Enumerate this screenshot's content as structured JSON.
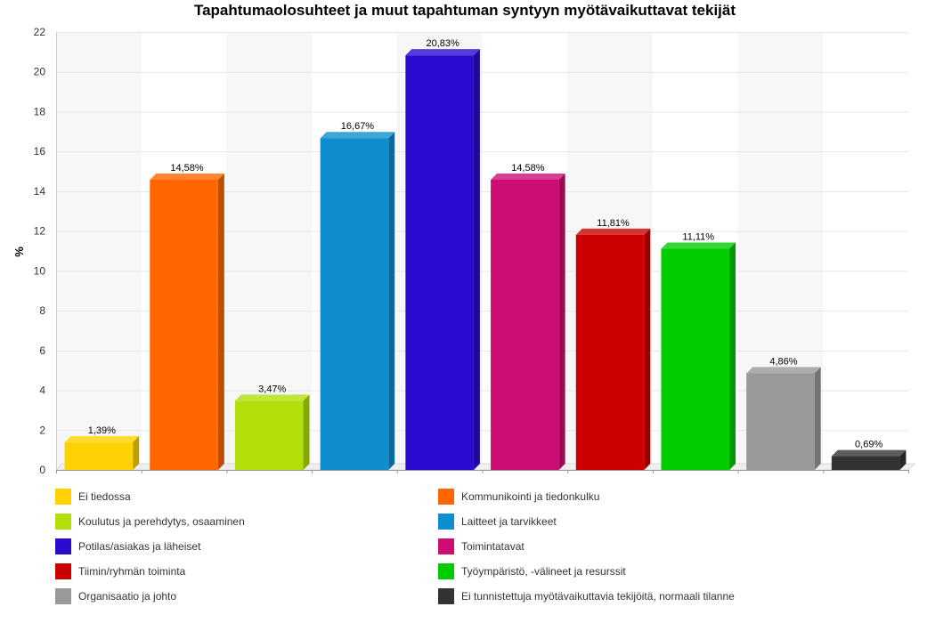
{
  "chart_data": {
    "type": "bar",
    "title": "Tapahtumaolosuhteet ja muut tapahtuman syntyyn myötävaikuttavat tekijät",
    "xlabel": "",
    "ylabel": "%",
    "ylim": [
      0,
      22
    ],
    "yticks": [
      0,
      2,
      4,
      6,
      8,
      10,
      12,
      14,
      16,
      18,
      20,
      22
    ],
    "grid": true,
    "legend_position": "bottom",
    "categories": [
      "Ei tiedossa",
      "Kommunikointi ja tiedonkulku",
      "Koulutus ja perehdytys, osaaminen",
      "Laitteet ja tarvikkeet",
      "Potilas/asiakas ja läheiset",
      "Toimintatavat",
      "Tiimin/ryhmän toiminta",
      "Työympäristö, -välineet ja resurssit",
      "Organisaatio ja johto",
      "Ei tunnistettuja myötävaikuttavia tekijöitä, normaali tilanne"
    ],
    "values": [
      1.39,
      14.58,
      3.47,
      16.67,
      20.83,
      14.58,
      11.81,
      11.11,
      4.86,
      0.69
    ],
    "data_labels": [
      "1,39%",
      "14,58%",
      "3,47%",
      "16,67%",
      "20,83%",
      "14,58%",
      "11,81%",
      "11,11%",
      "4,86%",
      "0,69%"
    ],
    "colors": [
      "#FFD200",
      "#FF6600",
      "#B2DE0A",
      "#0E8DCF",
      "#2A0CD0",
      "#CD0D74",
      "#CC0000",
      "#00CC00",
      "#999999",
      "#333333"
    ]
  }
}
